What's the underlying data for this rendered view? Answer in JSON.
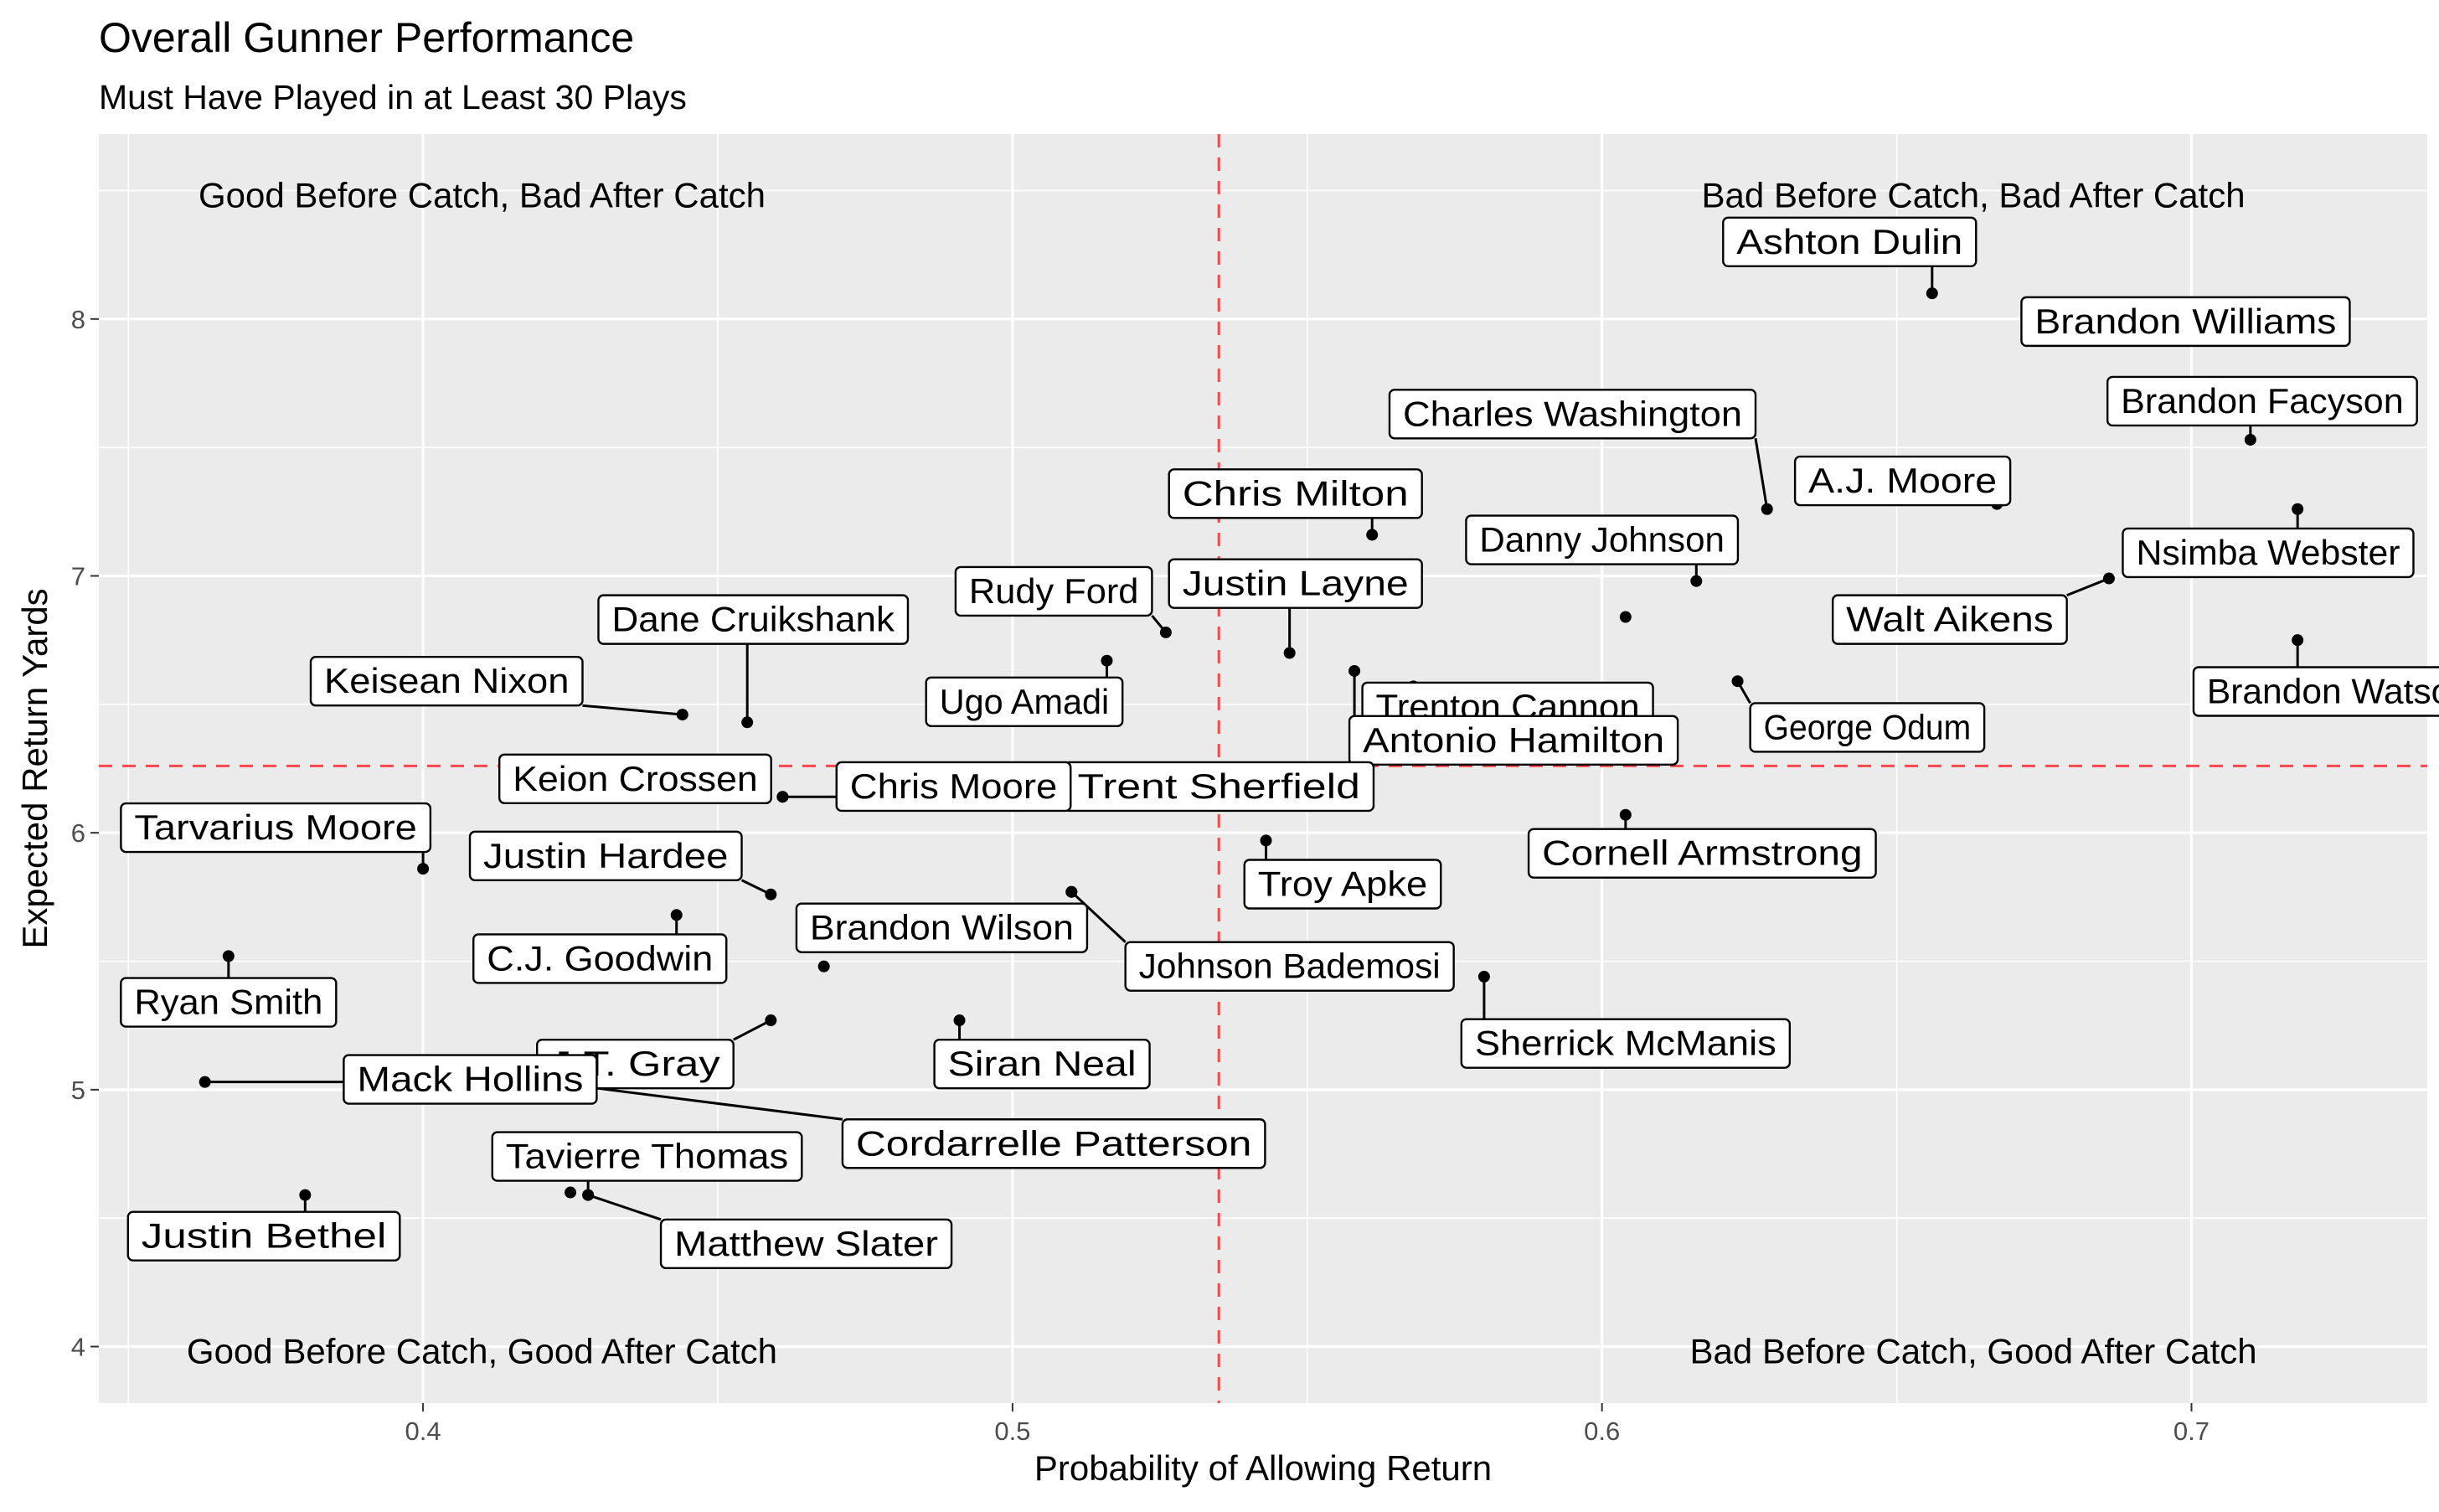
{
  "chart_data": {
    "type": "scatter",
    "title": "Overall Gunner Performance",
    "subtitle": "Must Have Played in at Least 30 Plays",
    "xlabel": "Probability of Allowing Return",
    "ylabel": "Expected Return Yards",
    "xlim": [
      0.345,
      0.74
    ],
    "ylim": [
      3.78,
      8.72
    ],
    "x_ticks": [
      0.4,
      0.5,
      0.6,
      0.7
    ],
    "x_tick_labels": [
      "0.4",
      "0.5",
      "0.6",
      "0.7"
    ],
    "y_ticks": [
      4,
      5,
      6,
      7,
      8
    ],
    "y_tick_labels": [
      "4",
      "5",
      "6",
      "7",
      "8"
    ],
    "grid": true,
    "reference_lines": {
      "x": 0.535,
      "y": 6.26,
      "color": "#f8484d",
      "style": "dashed"
    },
    "quadrant_labels": [
      {
        "text": "Good Before Catch, Bad After Catch",
        "x": 0.41,
        "y": 8.48
      },
      {
        "text": "Bad Before Catch, Bad After Catch",
        "x": 0.663,
        "y": 8.48
      },
      {
        "text": "Good Before Catch, Good After Catch",
        "x": 0.41,
        "y": 3.98
      },
      {
        "text": "Bad Before Catch, Good After Catch",
        "x": 0.663,
        "y": 3.98
      }
    ],
    "points": [
      {
        "name": "Ashton Dulin",
        "x": 0.656,
        "y": 8.1,
        "lx": 0.642,
        "ly": 8.3
      },
      {
        "name": "Brandon Williams",
        "x": 0.722,
        "y": 8.0,
        "lx": 0.699,
        "ly": 7.99
      },
      {
        "name": "Brandon Facyson",
        "x": 0.71,
        "y": 7.53,
        "lx": 0.712,
        "ly": 7.68
      },
      {
        "name": "Charles Washington",
        "x": 0.628,
        "y": 7.26,
        "lx": 0.595,
        "ly": 7.63
      },
      {
        "name": "A.J. Moore",
        "x": 0.667,
        "y": 7.28,
        "lx": 0.651,
        "ly": 7.37
      },
      {
        "name": "Nsimba Webster",
        "x": 0.718,
        "y": 7.26,
        "lx": 0.713,
        "ly": 7.09
      },
      {
        "name": "Chris Milton",
        "x": 0.561,
        "y": 7.16,
        "lx": 0.548,
        "ly": 7.32
      },
      {
        "name": "Danny Johnson",
        "x": 0.616,
        "y": 6.98,
        "lx": 0.6,
        "ly": 7.14
      },
      {
        "name": "Walt Aikens",
        "x": 0.686,
        "y": 6.99,
        "lx": 0.659,
        "ly": 6.83
      },
      {
        "name": "Brandon Watson",
        "x": 0.718,
        "y": 6.75,
        "lx": 0.725,
        "ly": 6.55
      },
      {
        "name": "Rudy Ford",
        "x": 0.526,
        "y": 6.78,
        "lx": 0.507,
        "ly": 6.94
      },
      {
        "name": "Justin Layne",
        "x": 0.547,
        "y": 6.7,
        "lx": 0.548,
        "ly": 6.97
      },
      {
        "name": "Danny Johnson point",
        "x": 0.604,
        "y": 6.84,
        "lx": null,
        "ly": null
      },
      {
        "name": "Trenton Cannon",
        "x": 0.568,
        "y": 6.57,
        "lx": 0.584,
        "ly": 6.49
      },
      {
        "name": "Antonio Hamilton",
        "x": 0.569,
        "y": 6.56,
        "lx": 0.585,
        "ly": 6.36
      },
      {
        "name": "George Odum",
        "x": 0.623,
        "y": 6.59,
        "lx": 0.645,
        "ly": 6.41
      },
      {
        "name": "Dane Cruikshank",
        "x": 0.455,
        "y": 6.43,
        "lx": 0.456,
        "ly": 6.83
      },
      {
        "name": "Keisean Nixon",
        "x": 0.444,
        "y": 6.46,
        "lx": 0.404,
        "ly": 6.59
      },
      {
        "name": "Ugo Amadi",
        "x": 0.516,
        "y": 6.67,
        "lx": 0.502,
        "ly": 6.51
      },
      {
        "name": "Trent Sherfield",
        "x": 0.558,
        "y": 6.63,
        "lx": 0.535,
        "ly": 6.18
      },
      {
        "name": "Keion Crossen",
        "x": 0.461,
        "y": 6.14,
        "lx": 0.436,
        "ly": 6.21
      },
      {
        "name": "Chris Moore",
        "x": 0.461,
        "y": 6.14,
        "lx": 0.49,
        "ly": 6.18
      },
      {
        "name": "Cornell Armstrong",
        "x": 0.604,
        "y": 6.07,
        "lx": 0.617,
        "ly": 5.92
      },
      {
        "name": "Tarvarius Moore",
        "x": 0.4,
        "y": 5.86,
        "lx": 0.375,
        "ly": 6.02
      },
      {
        "name": "Troy Apke",
        "x": 0.543,
        "y": 5.97,
        "lx": 0.556,
        "ly": 5.8
      },
      {
        "name": "Justin Hardee",
        "x": 0.459,
        "y": 5.76,
        "lx": 0.431,
        "ly": 5.91
      },
      {
        "name": "C.J. Goodwin",
        "x": 0.443,
        "y": 5.68,
        "lx": 0.43,
        "ly": 5.51
      },
      {
        "name": "Brandon Wilson",
        "x": 0.51,
        "y": 5.77,
        "lx": 0.488,
        "ly": 5.63
      },
      {
        "name": "Johnson Bademosi",
        "x": 0.51,
        "y": 5.77,
        "lx": 0.547,
        "ly": 5.48
      },
      {
        "name": "Brandon Wilson point",
        "x": 0.468,
        "y": 5.48,
        "lx": null,
        "ly": null
      },
      {
        "name": "Ryan Smith",
        "x": 0.367,
        "y": 5.52,
        "lx": 0.367,
        "ly": 5.34
      },
      {
        "name": "Sherrick McManis",
        "x": 0.58,
        "y": 5.44,
        "lx": 0.604,
        "ly": 5.18
      },
      {
        "name": "J.T. Gray",
        "x": 0.459,
        "y": 5.27,
        "lx": 0.436,
        "ly": 5.1
      },
      {
        "name": "Siran Neal",
        "x": 0.491,
        "y": 5.27,
        "lx": 0.505,
        "ly": 5.1
      },
      {
        "name": "Mack Hollins",
        "x": 0.363,
        "y": 5.03,
        "lx": 0.408,
        "ly": 5.04
      },
      {
        "name": "Cordarrelle Patterson",
        "x": 0.428,
        "y": 5.01,
        "lx": 0.507,
        "ly": 4.79
      },
      {
        "name": "Tavierre Thomas",
        "x": 0.428,
        "y": 4.59,
        "lx": 0.438,
        "ly": 4.74
      },
      {
        "name": "Justin Bethel",
        "x": 0.38,
        "y": 4.59,
        "lx": 0.373,
        "ly": 4.43
      },
      {
        "name": "Matthew Slater",
        "x": 0.428,
        "y": 4.59,
        "lx": 0.465,
        "ly": 4.4
      },
      {
        "name": "Matthew Slater point",
        "x": 0.425,
        "y": 4.6,
        "lx": null,
        "ly": null
      }
    ]
  }
}
